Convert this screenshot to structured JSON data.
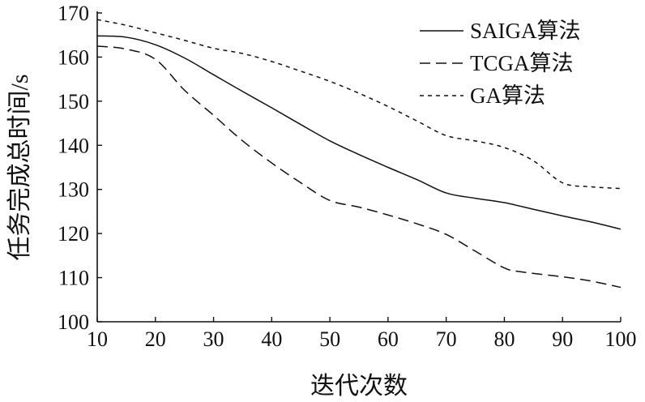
{
  "chart_data": {
    "type": "line",
    "title": "",
    "xlabel": "迭代次数",
    "ylabel": "任务完成总时间/s",
    "xlim": [
      10,
      100
    ],
    "ylim": [
      100,
      170
    ],
    "xticks": [
      10,
      20,
      30,
      40,
      50,
      60,
      70,
      80,
      90,
      100
    ],
    "yticks": [
      100,
      110,
      120,
      130,
      140,
      150,
      160,
      170
    ],
    "grid": false,
    "legend_position": "top-right",
    "series": [
      {
        "name": "SAIGA算法",
        "style": "solid",
        "color": "#111111",
        "x": [
          10,
          15,
          20,
          25,
          30,
          35,
          40,
          45,
          50,
          55,
          60,
          65,
          70,
          75,
          80,
          85,
          90,
          95,
          100
        ],
        "y": [
          164.8,
          164.5,
          162.8,
          159.8,
          156.0,
          152.2,
          148.5,
          144.7,
          141.0,
          137.9,
          135.0,
          132.2,
          129.2,
          128.0,
          127.0,
          125.5,
          124.0,
          122.6,
          121.0
        ]
      },
      {
        "name": "TCGA算法",
        "style": "dashed",
        "color": "#111111",
        "x": [
          10,
          15,
          20,
          25,
          30,
          35,
          40,
          45,
          50,
          55,
          60,
          65,
          70,
          75,
          80,
          83,
          90,
          95,
          100
        ],
        "y": [
          162.5,
          161.8,
          159.5,
          152.5,
          146.8,
          141.0,
          136.0,
          131.5,
          127.5,
          126.0,
          124.2,
          122.2,
          119.8,
          116.0,
          112.2,
          111.3,
          110.2,
          109.2,
          107.8
        ]
      },
      {
        "name": "GA算法",
        "style": "dotted",
        "color": "#111111",
        "x": [
          10,
          15,
          20,
          25,
          30,
          35,
          40,
          45,
          50,
          55,
          60,
          65,
          70,
          75,
          80,
          85,
          90,
          95,
          100
        ],
        "y": [
          168.5,
          167.2,
          165.5,
          163.8,
          162.0,
          160.8,
          159.0,
          156.8,
          154.5,
          151.8,
          148.8,
          145.5,
          142.2,
          141.0,
          139.5,
          136.5,
          131.5,
          130.6,
          130.2
        ]
      }
    ]
  }
}
